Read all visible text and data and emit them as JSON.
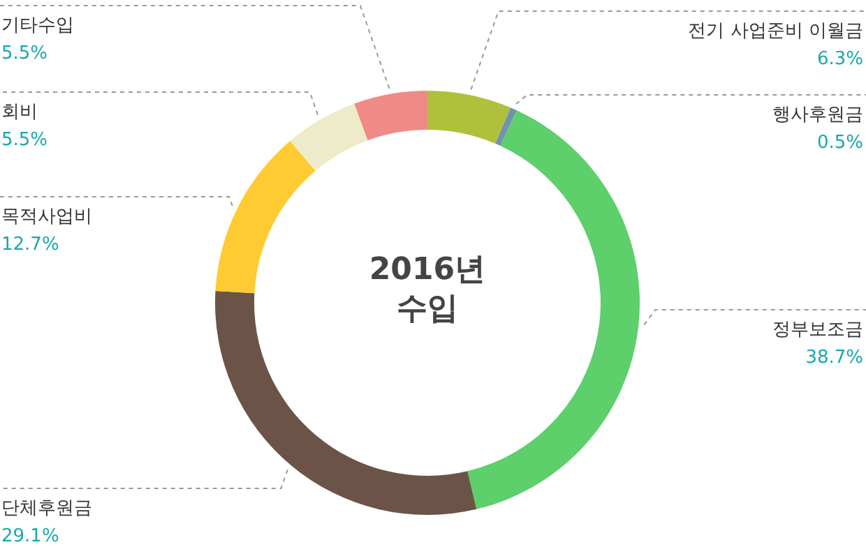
{
  "chart_data": {
    "type": "donut",
    "title": "2016년 수입",
    "categories": [
      "전기 사업준비 이월금",
      "행사후원금",
      "정부보조금",
      "단체후원금",
      "목적사업비",
      "회비",
      "기타수입"
    ],
    "values": [
      6.3,
      0.5,
      38.7,
      29.1,
      12.7,
      5.5,
      5.5
    ],
    "colors": [
      "#afc13c",
      "#7193a9",
      "#5dcf6b",
      "#6b5447",
      "#ffcb33",
      "#edebc9",
      "#f08a87"
    ],
    "value_labels": [
      "6.3%",
      "0.5%",
      "38.7%",
      "29.1%",
      "12.7%",
      "5.5%",
      "5.5%"
    ]
  }
}
